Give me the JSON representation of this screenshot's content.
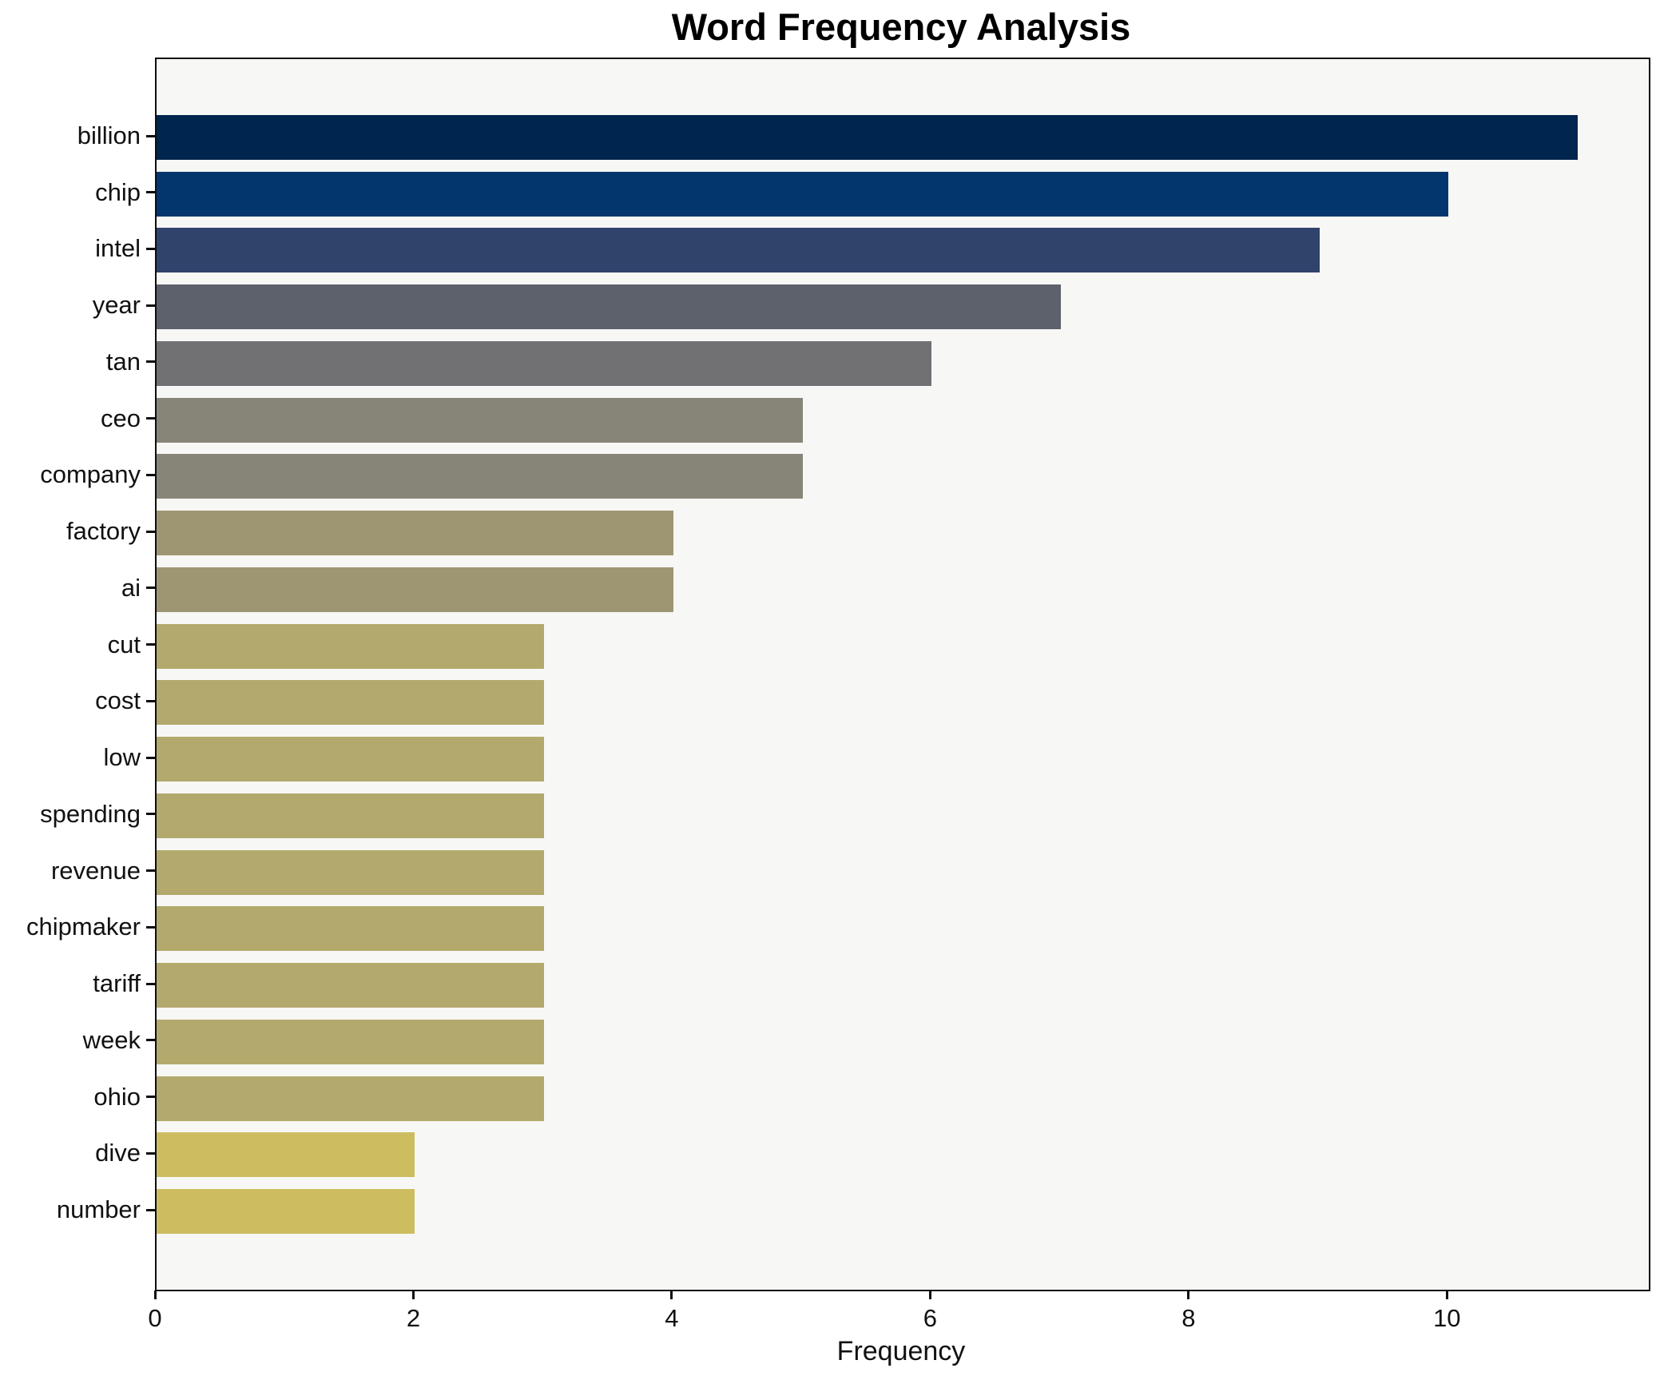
{
  "chart_data": {
    "type": "bar",
    "orientation": "horizontal",
    "title": "Word Frequency Analysis",
    "xlabel": "Frequency",
    "ylabel": "",
    "categories": [
      "billion",
      "chip",
      "intel",
      "year",
      "tan",
      "ceo",
      "company",
      "factory",
      "ai",
      "cut",
      "cost",
      "low",
      "spending",
      "revenue",
      "chipmaker",
      "tariff",
      "week",
      "ohio",
      "dive",
      "number"
    ],
    "values": [
      11,
      10,
      9,
      7,
      6,
      5,
      5,
      4,
      4,
      3,
      3,
      3,
      3,
      3,
      3,
      3,
      3,
      3,
      2,
      2
    ],
    "bar_colors": [
      "#00254f",
      "#04366e",
      "#2f436b",
      "#5c616c",
      "#717173",
      "#868577",
      "#868577",
      "#9e9673",
      "#9e9673",
      "#b3a96c",
      "#b3a96c",
      "#b3a96c",
      "#b3a96c",
      "#b3a96c",
      "#b3a96c",
      "#b3a96c",
      "#b3a96c",
      "#b3a96c",
      "#cdbd60",
      "#cdbd60"
    ],
    "xticks": [
      0,
      2,
      4,
      6,
      8,
      10
    ],
    "xlim": [
      0,
      11.55
    ],
    "grid": false,
    "legend": null,
    "plot_background": "#f7f7f5",
    "figure_background": "#ffffff",
    "axis_color": "#0e0e0e"
  }
}
